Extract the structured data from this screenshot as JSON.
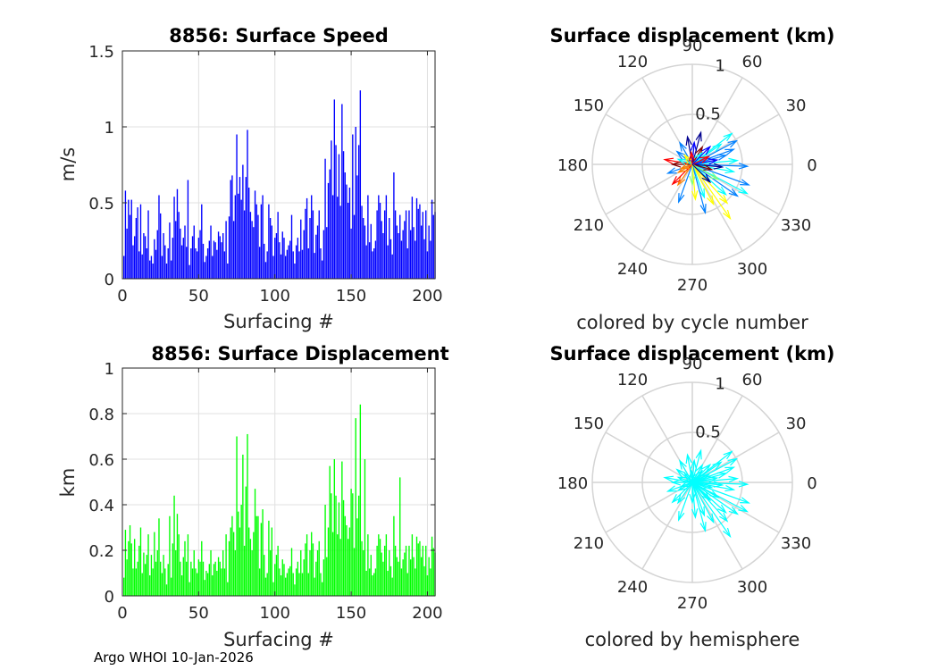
{
  "footer": {
    "text": "Argo WHOI 10-Jan-2026"
  },
  "colors": {
    "speed_bar": "#0000ff",
    "displacement_bar": "#00ff00",
    "hemisphere_arrow": "#00ffff",
    "grid": "#e0e0e0",
    "polar_grid": "#d4d4d4",
    "axis": "#262626"
  },
  "chart_data": [
    {
      "id": "speed",
      "type": "bar",
      "title": "8856: Surface Speed",
      "xlabel": "Surfacing #",
      "ylabel": "m/s",
      "xlim": [
        0,
        205
      ],
      "ylim": [
        0,
        1.5
      ],
      "xticks": [
        0,
        50,
        100,
        150,
        200
      ],
      "yticks": [
        0,
        0.5,
        1,
        1.5
      ],
      "ytick_labels": [
        "0",
        "0.5",
        "1",
        "1.5"
      ],
      "grid": true,
      "x_start": 1,
      "values": [
        0.15,
        0.58,
        0.33,
        0.52,
        0.42,
        0.52,
        0.22,
        0.28,
        0.4,
        0.47,
        0.18,
        0.49,
        0.16,
        0.3,
        0.28,
        0.2,
        0.45,
        0.12,
        0.15,
        0.1,
        0.26,
        0.19,
        0.32,
        0.55,
        0.43,
        0.15,
        0.3,
        0.22,
        0.1,
        0.2,
        0.37,
        0.12,
        0.27,
        0.54,
        0.38,
        0.59,
        0.44,
        0.33,
        0.22,
        0.27,
        0.35,
        0.21,
        0.65,
        0.09,
        0.2,
        0.28,
        0.35,
        0.2,
        0.18,
        0.27,
        0.32,
        0.49,
        0.23,
        0.11,
        0.15,
        0.2,
        0.25,
        0.35,
        0.15,
        0.25,
        0.24,
        0.19,
        0.31,
        0.28,
        0.24,
        0.3,
        0.18,
        0.38,
        0.1,
        0.41,
        0.65,
        0.68,
        0.38,
        0.55,
        0.95,
        0.56,
        0.67,
        0.52,
        0.75,
        0.45,
        0.67,
        0.98,
        0.6,
        0.44,
        0.38,
        0.34,
        0.58,
        0.49,
        0.42,
        0.21,
        0.49,
        0.55,
        0.23,
        0.11,
        0.18,
        0.49,
        0.4,
        0.35,
        0.15,
        0.27,
        0.3,
        0.44,
        0.24,
        0.16,
        0.31,
        0.27,
        0.15,
        0.19,
        0.22,
        0.25,
        0.42,
        0.18,
        0.1,
        0.22,
        0.27,
        0.18,
        0.39,
        0.19,
        0.32,
        0.46,
        0.53,
        0.2,
        0.4,
        0.55,
        0.45,
        0.17,
        0.29,
        0.35,
        0.45,
        0.2,
        0.12,
        0.32,
        0.79,
        0.34,
        0.63,
        0.72,
        0.91,
        0.55,
        1.18,
        0.88,
        0.54,
        0.82,
        0.48,
        1.15,
        0.84,
        0.7,
        0.62,
        0.5,
        0.6,
        0.33,
        0.95,
        0.42,
        1.0,
        0.68,
        0.88,
        1.24,
        0.48,
        0.4,
        0.35,
        0.22,
        0.55,
        0.24,
        0.36,
        0.18,
        0.2,
        0.25,
        0.45,
        0.55,
        0.5,
        0.38,
        0.3,
        0.45,
        0.55,
        0.22,
        0.4,
        0.26,
        0.16,
        0.7,
        0.45,
        0.35,
        0.3,
        0.42,
        0.25,
        0.32,
        0.38,
        0.45,
        0.2,
        0.45,
        0.32,
        0.54,
        0.34,
        0.25,
        0.53,
        0.46,
        0.49,
        0.35,
        0.44,
        0.26,
        0.45,
        0.18,
        0.35,
        0.25,
        0.52,
        0.42,
        0.44
      ]
    },
    {
      "id": "displacement",
      "type": "bar",
      "title": "8856: Surface Displacement",
      "xlabel": "Surfacing #",
      "ylabel": "km",
      "xlim": [
        0,
        205
      ],
      "ylim": [
        0,
        1
      ],
      "xticks": [
        0,
        50,
        100,
        150,
        200
      ],
      "yticks": [
        0,
        0.2,
        0.4,
        0.6,
        0.8,
        1
      ],
      "ytick_labels": [
        "0",
        "0.2",
        "0.4",
        "0.6",
        "0.8",
        "1"
      ],
      "grid": true,
      "x_start": 1,
      "values": [
        0.08,
        0.29,
        0.16,
        0.24,
        0.31,
        0.23,
        0.12,
        0.25,
        0.12,
        0.15,
        0.22,
        0.3,
        0.1,
        0.19,
        0.14,
        0.18,
        0.27,
        0.09,
        0.18,
        0.12,
        0.28,
        0.15,
        0.2,
        0.34,
        0.15,
        0.1,
        0.18,
        0.12,
        0.05,
        0.14,
        0.35,
        0.08,
        0.23,
        0.44,
        0.2,
        0.36,
        0.27,
        0.15,
        0.09,
        0.17,
        0.24,
        0.15,
        0.27,
        0.06,
        0.15,
        0.12,
        0.2,
        0.12,
        0.1,
        0.16,
        0.15,
        0.24,
        0.15,
        0.07,
        0.11,
        0.1,
        0.14,
        0.2,
        0.09,
        0.14,
        0.15,
        0.11,
        0.17,
        0.15,
        0.12,
        0.2,
        0.12,
        0.27,
        0.06,
        0.24,
        0.3,
        0.35,
        0.28,
        0.2,
        0.7,
        0.37,
        0.3,
        0.4,
        0.62,
        0.22,
        0.48,
        0.71,
        0.3,
        0.25,
        0.2,
        0.28,
        0.47,
        0.35,
        0.35,
        0.12,
        0.32,
        0.38,
        0.18,
        0.08,
        0.1,
        0.33,
        0.2,
        0.3,
        0.06,
        0.14,
        0.18,
        0.22,
        0.12,
        0.09,
        0.16,
        0.14,
        0.08,
        0.1,
        0.12,
        0.13,
        0.21,
        0.1,
        0.05,
        0.12,
        0.15,
        0.1,
        0.2,
        0.1,
        0.16,
        0.23,
        0.27,
        0.1,
        0.2,
        0.28,
        0.23,
        0.08,
        0.15,
        0.2,
        0.24,
        0.1,
        0.06,
        0.16,
        0.4,
        0.17,
        0.3,
        0.57,
        0.45,
        0.28,
        0.6,
        0.44,
        0.27,
        0.41,
        0.25,
        0.59,
        0.42,
        0.35,
        0.31,
        0.25,
        0.3,
        0.47,
        0.45,
        0.21,
        0.78,
        0.34,
        0.44,
        0.84,
        0.24,
        0.2,
        0.6,
        0.11,
        0.27,
        0.12,
        0.18,
        0.09,
        0.1,
        0.12,
        0.22,
        0.27,
        0.25,
        0.19,
        0.15,
        0.22,
        0.27,
        0.11,
        0.2,
        0.13,
        0.08,
        0.35,
        0.22,
        0.17,
        0.15,
        0.52,
        0.12,
        0.16,
        0.19,
        0.22,
        0.1,
        0.22,
        0.16,
        0.27,
        0.17,
        0.12,
        0.26,
        0.23,
        0.24,
        0.17,
        0.22,
        0.13,
        0.22,
        0.09,
        0.17,
        0.12,
        0.26,
        0.21,
        0.19
      ]
    },
    {
      "id": "polar_cycle",
      "type": "polar-compass",
      "title": "Surface displacement (km)",
      "caption": "colored by cycle number",
      "rmax": 1,
      "rticks": [
        0.5,
        1
      ],
      "rtick_labels": [
        "0.5",
        "1"
      ],
      "angle_ticks": [
        90,
        60,
        30,
        0,
        330,
        300,
        270,
        240,
        210,
        180,
        150,
        120
      ],
      "colormap": [
        "#00008f",
        "#0000ff",
        "#0080ff",
        "#00ffff",
        "#80ff80",
        "#ffff00",
        "#ff8000",
        "#ff0000",
        "#800000"
      ],
      "vectors": [
        {
          "angle": 20,
          "r": 0.44,
          "color_index": 2
        },
        {
          "angle": 28,
          "r": 0.5,
          "color_index": 2
        },
        {
          "angle": 38,
          "r": 0.5,
          "color_index": 3
        },
        {
          "angle": 35,
          "r": 0.35,
          "color_index": 3
        },
        {
          "angle": 15,
          "r": 0.35,
          "color_index": 2
        },
        {
          "angle": 5,
          "r": 0.45,
          "color_index": 3
        },
        {
          "angle": -2,
          "r": 0.55,
          "color_index": 2
        },
        {
          "angle": -10,
          "r": 0.42,
          "color_index": 3
        },
        {
          "angle": -20,
          "r": 0.6,
          "color_index": 2
        },
        {
          "angle": -28,
          "r": 0.62,
          "color_index": 3
        },
        {
          "angle": -35,
          "r": 0.55,
          "color_index": 2
        },
        {
          "angle": -42,
          "r": 0.45,
          "color_index": 3
        },
        {
          "angle": -48,
          "r": 0.52,
          "color_index": 5
        },
        {
          "angle": -55,
          "r": 0.66,
          "color_index": 5
        },
        {
          "angle": -62,
          "r": 0.45,
          "color_index": 5
        },
        {
          "angle": -70,
          "r": 0.35,
          "color_index": 3
        },
        {
          "angle": -75,
          "r": 0.5,
          "color_index": 2
        },
        {
          "angle": -90,
          "r": 0.2,
          "color_index": 4
        },
        {
          "angle": -110,
          "r": 0.4,
          "color_index": 2
        },
        {
          "angle": -125,
          "r": 0.25,
          "color_index": 6
        },
        {
          "angle": -135,
          "r": 0.28,
          "color_index": 7
        },
        {
          "angle": -150,
          "r": 0.16,
          "color_index": 6
        },
        {
          "angle": -160,
          "r": 0.26,
          "color_index": 2
        },
        {
          "angle": 170,
          "r": 0.28,
          "color_index": 7
        },
        {
          "angle": 180,
          "r": 0.2,
          "color_index": 8
        },
        {
          "angle": 160,
          "r": 0.15,
          "color_index": 3
        },
        {
          "angle": 140,
          "r": 0.2,
          "color_index": 2
        },
        {
          "angle": 120,
          "r": 0.25,
          "color_index": 2
        },
        {
          "angle": 100,
          "r": 0.28,
          "color_index": 0
        },
        {
          "angle": 85,
          "r": 0.22,
          "color_index": 1
        },
        {
          "angle": 75,
          "r": 0.33,
          "color_index": 0
        },
        {
          "angle": 60,
          "r": 0.2,
          "color_index": 8
        },
        {
          "angle": 50,
          "r": 0.15,
          "color_index": 3
        },
        {
          "angle": 10,
          "r": 0.25,
          "color_index": 1
        },
        {
          "angle": -5,
          "r": 0.3,
          "color_index": 0
        },
        {
          "angle": 25,
          "r": 0.18,
          "color_index": 7
        },
        {
          "angle": -15,
          "r": 0.2,
          "color_index": 8
        },
        {
          "angle": -30,
          "r": 0.3,
          "color_index": 4
        },
        {
          "angle": -85,
          "r": 0.35,
          "color_index": 5
        },
        {
          "angle": 200,
          "r": 0.12,
          "color_index": 6
        },
        {
          "angle": 130,
          "r": 0.12,
          "color_index": 5
        },
        {
          "angle": 95,
          "r": 0.12,
          "color_index": 7
        },
        {
          "angle": 45,
          "r": 0.25,
          "color_index": 1
        },
        {
          "angle": -45,
          "r": 0.25,
          "color_index": 0
        }
      ]
    },
    {
      "id": "polar_hemisphere",
      "type": "polar-compass",
      "title": "Surface displacement (km)",
      "caption": "colored by hemisphere",
      "rmax": 1,
      "rticks": [
        0.5,
        1
      ],
      "rtick_labels": [
        "0.5",
        "1"
      ],
      "angle_ticks": [
        90,
        60,
        30,
        0,
        330,
        300,
        270,
        240,
        210,
        180,
        150,
        120
      ],
      "colormap": [
        "#00ffff"
      ],
      "vectors": [
        {
          "angle": 20,
          "r": 0.44,
          "color_index": 0
        },
        {
          "angle": 28,
          "r": 0.5,
          "color_index": 0
        },
        {
          "angle": 38,
          "r": 0.5,
          "color_index": 0
        },
        {
          "angle": 35,
          "r": 0.35,
          "color_index": 0
        },
        {
          "angle": 15,
          "r": 0.35,
          "color_index": 0
        },
        {
          "angle": 5,
          "r": 0.45,
          "color_index": 0
        },
        {
          "angle": -2,
          "r": 0.55,
          "color_index": 0
        },
        {
          "angle": -10,
          "r": 0.42,
          "color_index": 0
        },
        {
          "angle": -20,
          "r": 0.6,
          "color_index": 0
        },
        {
          "angle": -28,
          "r": 0.62,
          "color_index": 0
        },
        {
          "angle": -35,
          "r": 0.55,
          "color_index": 0
        },
        {
          "angle": -42,
          "r": 0.45,
          "color_index": 0
        },
        {
          "angle": -48,
          "r": 0.52,
          "color_index": 0
        },
        {
          "angle": -55,
          "r": 0.66,
          "color_index": 0
        },
        {
          "angle": -62,
          "r": 0.45,
          "color_index": 0
        },
        {
          "angle": -70,
          "r": 0.35,
          "color_index": 0
        },
        {
          "angle": -75,
          "r": 0.5,
          "color_index": 0
        },
        {
          "angle": -90,
          "r": 0.2,
          "color_index": 0
        },
        {
          "angle": -110,
          "r": 0.4,
          "color_index": 0
        },
        {
          "angle": -125,
          "r": 0.25,
          "color_index": 0
        },
        {
          "angle": -135,
          "r": 0.28,
          "color_index": 0
        },
        {
          "angle": -150,
          "r": 0.16,
          "color_index": 0
        },
        {
          "angle": -160,
          "r": 0.26,
          "color_index": 0
        },
        {
          "angle": 170,
          "r": 0.28,
          "color_index": 0
        },
        {
          "angle": 180,
          "r": 0.2,
          "color_index": 0
        },
        {
          "angle": 160,
          "r": 0.15,
          "color_index": 0
        },
        {
          "angle": 140,
          "r": 0.2,
          "color_index": 0
        },
        {
          "angle": 120,
          "r": 0.25,
          "color_index": 0
        },
        {
          "angle": 100,
          "r": 0.28,
          "color_index": 0
        },
        {
          "angle": 85,
          "r": 0.22,
          "color_index": 0
        },
        {
          "angle": 75,
          "r": 0.33,
          "color_index": 0
        },
        {
          "angle": 60,
          "r": 0.2,
          "color_index": 0
        },
        {
          "angle": 50,
          "r": 0.15,
          "color_index": 0
        },
        {
          "angle": 10,
          "r": 0.25,
          "color_index": 0
        },
        {
          "angle": -5,
          "r": 0.3,
          "color_index": 0
        },
        {
          "angle": 25,
          "r": 0.18,
          "color_index": 0
        },
        {
          "angle": -15,
          "r": 0.2,
          "color_index": 0
        },
        {
          "angle": -30,
          "r": 0.3,
          "color_index": 0
        },
        {
          "angle": -85,
          "r": 0.35,
          "color_index": 0
        },
        {
          "angle": 200,
          "r": 0.12,
          "color_index": 0
        },
        {
          "angle": 130,
          "r": 0.12,
          "color_index": 0
        },
        {
          "angle": 95,
          "r": 0.12,
          "color_index": 0
        },
        {
          "angle": 45,
          "r": 0.25,
          "color_index": 0
        },
        {
          "angle": -45,
          "r": 0.25,
          "color_index": 0
        }
      ]
    }
  ]
}
